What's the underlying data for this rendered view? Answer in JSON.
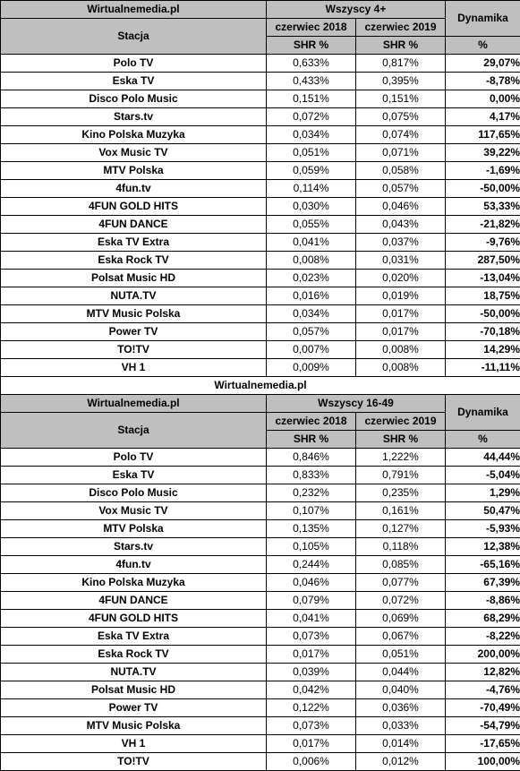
{
  "source_label": "Wirtualnemedia.pl",
  "headers": {
    "station": "Stacja",
    "dynamics": "Dynamika",
    "period_2018": "czerwiec 2018",
    "period_2019": "czerwiec 2019",
    "unit_shr": "SHR %",
    "unit_pct": "%"
  },
  "sections": [
    {
      "group_label": "Wszyscy 4+",
      "rows": [
        {
          "station": "Polo TV",
          "shr_2018": "0,633%",
          "shr_2019": "0,817%",
          "dynamics": "29,07%"
        },
        {
          "station": "Eska TV",
          "shr_2018": "0,433%",
          "shr_2019": "0,395%",
          "dynamics": "-8,78%"
        },
        {
          "station": "Disco Polo Music",
          "shr_2018": "0,151%",
          "shr_2019": "0,151%",
          "dynamics": "0,00%"
        },
        {
          "station": "Stars.tv",
          "shr_2018": "0,072%",
          "shr_2019": "0,075%",
          "dynamics": "4,17%"
        },
        {
          "station": "Kino Polska Muzyka",
          "shr_2018": "0,034%",
          "shr_2019": "0,074%",
          "dynamics": "117,65%"
        },
        {
          "station": "Vox Music TV",
          "shr_2018": "0,051%",
          "shr_2019": "0,071%",
          "dynamics": "39,22%"
        },
        {
          "station": "MTV Polska",
          "shr_2018": "0,059%",
          "shr_2019": "0,058%",
          "dynamics": "-1,69%"
        },
        {
          "station": "4fun.tv",
          "shr_2018": "0,114%",
          "shr_2019": "0,057%",
          "dynamics": "-50,00%"
        },
        {
          "station": "4FUN GOLD HITS",
          "shr_2018": "0,030%",
          "shr_2019": "0,046%",
          "dynamics": "53,33%"
        },
        {
          "station": "4FUN DANCE",
          "shr_2018": "0,055%",
          "shr_2019": "0,043%",
          "dynamics": "-21,82%"
        },
        {
          "station": "Eska TV Extra",
          "shr_2018": "0,041%",
          "shr_2019": "0,037%",
          "dynamics": "-9,76%"
        },
        {
          "station": "Eska Rock TV",
          "shr_2018": "0,008%",
          "shr_2019": "0,031%",
          "dynamics": "287,50%"
        },
        {
          "station": "Polsat Music HD",
          "shr_2018": "0,023%",
          "shr_2019": "0,020%",
          "dynamics": "-13,04%"
        },
        {
          "station": "NUTA.TV",
          "shr_2018": "0,016%",
          "shr_2019": "0,019%",
          "dynamics": "18,75%"
        },
        {
          "station": "MTV Music Polska",
          "shr_2018": "0,034%",
          "shr_2019": "0,017%",
          "dynamics": "-50,00%"
        },
        {
          "station": "Power TV",
          "shr_2018": "0,057%",
          "shr_2019": "0,017%",
          "dynamics": "-70,18%"
        },
        {
          "station": "TO!TV",
          "shr_2018": "0,007%",
          "shr_2019": "0,008%",
          "dynamics": "14,29%"
        },
        {
          "station": "VH 1",
          "shr_2018": "0,009%",
          "shr_2019": "0,008%",
          "dynamics": "-11,11%"
        }
      ]
    },
    {
      "group_label": "Wszyscy 16-49",
      "rows": [
        {
          "station": "Polo TV",
          "shr_2018": "0,846%",
          "shr_2019": "1,222%",
          "dynamics": "44,44%"
        },
        {
          "station": "Eska TV",
          "shr_2018": "0,833%",
          "shr_2019": "0,791%",
          "dynamics": "-5,04%"
        },
        {
          "station": "Disco Polo Music",
          "shr_2018": "0,232%",
          "shr_2019": "0,235%",
          "dynamics": "1,29%"
        },
        {
          "station": "Vox Music TV",
          "shr_2018": "0,107%",
          "shr_2019": "0,161%",
          "dynamics": "50,47%"
        },
        {
          "station": "MTV Polska",
          "shr_2018": "0,135%",
          "shr_2019": "0,127%",
          "dynamics": "-5,93%"
        },
        {
          "station": "Stars.tv",
          "shr_2018": "0,105%",
          "shr_2019": "0,118%",
          "dynamics": "12,38%"
        },
        {
          "station": "4fun.tv",
          "shr_2018": "0,244%",
          "shr_2019": "0,085%",
          "dynamics": "-65,16%"
        },
        {
          "station": "Kino Polska Muzyka",
          "shr_2018": "0,046%",
          "shr_2019": "0,077%",
          "dynamics": "67,39%"
        },
        {
          "station": "4FUN DANCE",
          "shr_2018": "0,079%",
          "shr_2019": "0,072%",
          "dynamics": "-8,86%"
        },
        {
          "station": "4FUN GOLD HITS",
          "shr_2018": "0,041%",
          "shr_2019": "0,069%",
          "dynamics": "68,29%"
        },
        {
          "station": "Eska TV Extra",
          "shr_2018": "0,073%",
          "shr_2019": "0,067%",
          "dynamics": "-8,22%"
        },
        {
          "station": "Eska Rock TV",
          "shr_2018": "0,017%",
          "shr_2019": "0,051%",
          "dynamics": "200,00%"
        },
        {
          "station": "NUTA.TV",
          "shr_2018": "0,039%",
          "shr_2019": "0,044%",
          "dynamics": "12,82%"
        },
        {
          "station": "Polsat Music HD",
          "shr_2018": "0,042%",
          "shr_2019": "0,040%",
          "dynamics": "-4,76%"
        },
        {
          "station": "Power TV",
          "shr_2018": "0,122%",
          "shr_2019": "0,036%",
          "dynamics": "-70,49%"
        },
        {
          "station": "MTV Music Polska",
          "shr_2018": "0,073%",
          "shr_2019": "0,033%",
          "dynamics": "-54,79%"
        },
        {
          "station": "VH 1",
          "shr_2018": "0,017%",
          "shr_2019": "0,014%",
          "dynamics": "-17,65%"
        },
        {
          "station": "TO!TV",
          "shr_2018": "0,006%",
          "shr_2019": "0,012%",
          "dynamics": "100,00%"
        }
      ]
    }
  ]
}
